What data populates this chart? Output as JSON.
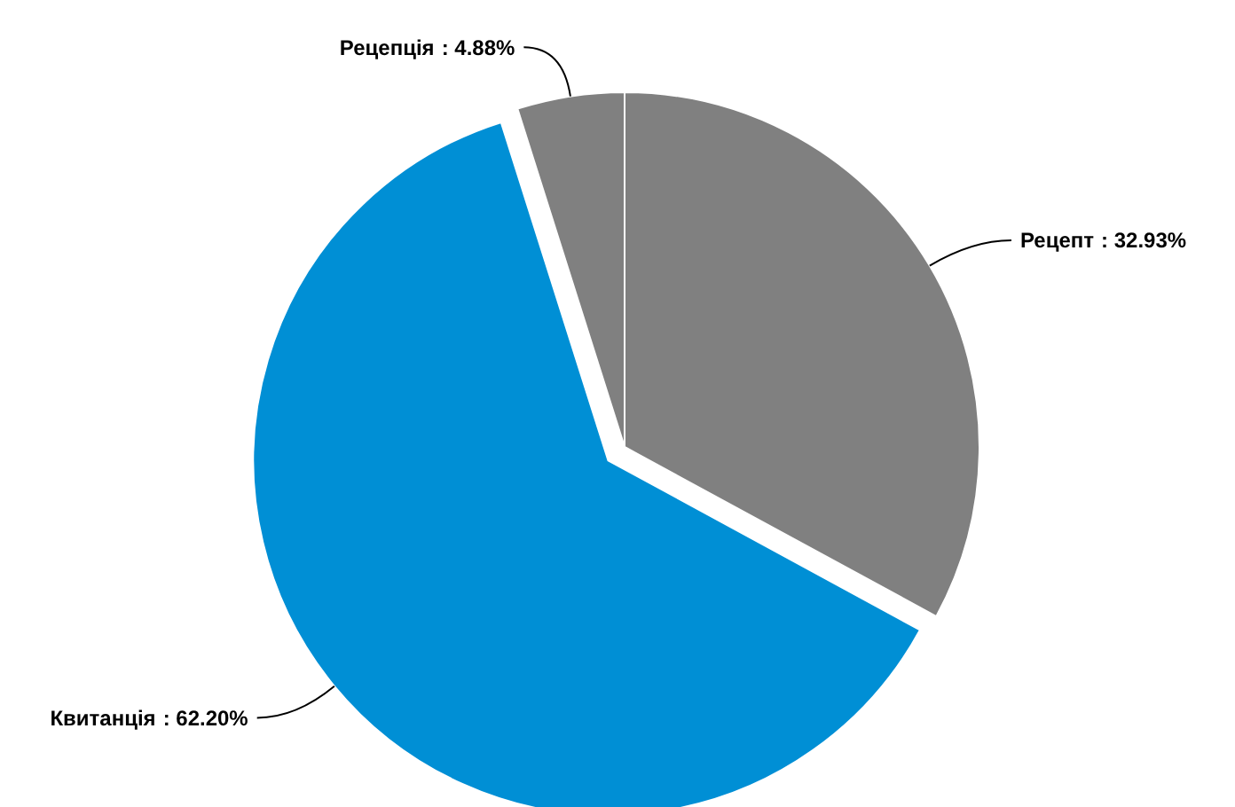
{
  "chart_data": {
    "type": "pie",
    "categories": [
      "Рецепт",
      "Квитанція",
      "Рецепція"
    ],
    "values": [
      32.93,
      62.2,
      4.88
    ],
    "colors": [
      "#808080",
      "#008fd5",
      "#808080"
    ],
    "value_labels": [
      ": 32.93%",
      ": 62.20%",
      ": 4.88%"
    ]
  }
}
